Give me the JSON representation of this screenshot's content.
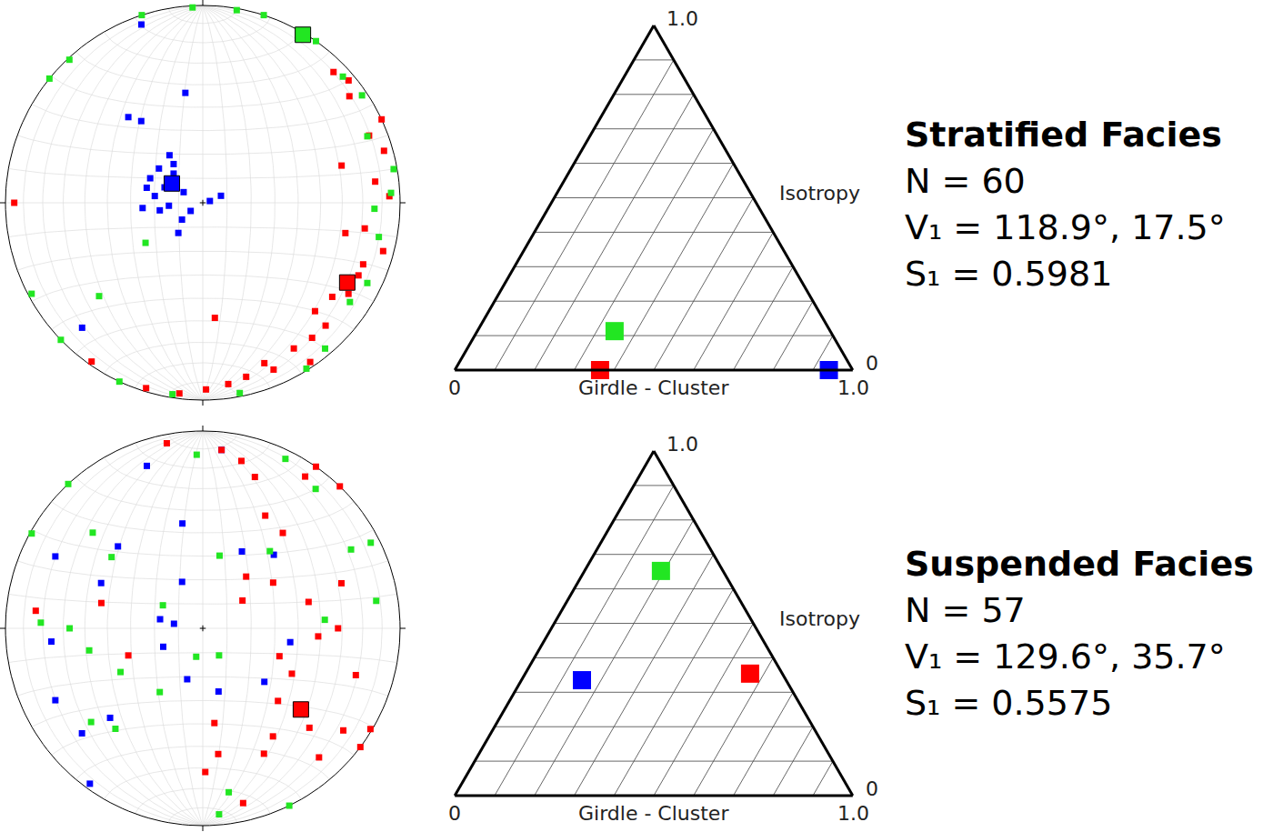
{
  "chart_data": [
    {
      "type": "stereonet",
      "title": "Stratified Facies",
      "marker": "square",
      "stats": [
        "N = 60",
        "V₁ = 118.9°, 17.5°",
        "S₁ = 0.5981"
      ],
      "series": [
        {
          "color": "#ff0000",
          "trend": [
            45,
            50,
            54,
            65,
            68,
            74,
            75,
            83,
            99,
            102,
            105,
            111,
            126,
            134,
            135,
            141,
            148,
            159,
            166,
            172,
            179,
            187,
            197,
            215,
            270,
            157,
            146,
            122,
            115,
            174,
            88
          ],
          "plunge": [
            7,
            4,
            9,
            0,
            10,
            5,
            28,
            13,
            18,
            27,
            6,
            14,
            20,
            22,
            13,
            13,
            14,
            14,
            10,
            8,
            6,
            3,
            2,
            2,
            5,
            9,
            3,
            14,
            14,
            41,
            6
          ],
          "mean": {
            "trend": 118.9,
            "plunge": 17.5
          }
        },
        {
          "color": "#22e622",
          "trend": [
            357,
            10,
            18,
            35,
            48,
            56,
            68,
            80,
            87,
            92,
            317,
            309,
            242,
            228,
            235,
            226,
            205,
            189,
            169,
            148,
            140,
            124,
            101,
            116,
            342
          ],
          "plunge": [
            1,
            1,
            0,
            0,
            5,
            3,
            11,
            2,
            5,
            14,
            1,
            0,
            2,
            30,
            61,
            0,
            0,
            2,
            2,
            1,
            4,
            11,
            10,
            8,
            0
          ],
          "mean": {
            "trend": 30.8,
            "plunge": 1
          }
        },
        {
          "color": "#0000ff",
          "trend": [
            341,
            351,
            319,
            323,
            325,
            308,
            295,
            315,
            299,
            278,
            265,
            265,
            236,
            231,
            219,
            69,
            76,
            285,
            224,
            292,
            260,
            323
          ],
          "plunge": [
            5,
            43,
            42,
            47,
            66,
            67,
            66,
            73,
            81,
            70,
            65,
            76,
            84,
            79,
            74,
            82,
            87,
            66,
            13,
            73,
            72,
            70
          ],
          "mean": {
            "trend": 302,
            "plunge": 75
          }
        }
      ]
    },
    {
      "type": "ternary",
      "marker": "square",
      "grid": true,
      "grid_values": [
        0.1,
        0.2,
        0.3,
        0.4,
        0.5,
        0.6,
        0.7,
        0.8,
        0.9
      ],
      "axes": {
        "isotropy": {
          "title": "Isotropy",
          "ticks": [
            0,
            {
              "value": 1,
              "label": "1.0"
            }
          ]
        },
        "girdle_cluster": {
          "title": "Girdle - Cluster",
          "ticks": [
            0,
            {
              "value": 1,
              "label": "1.0"
            }
          ]
        }
      },
      "points": {
        "colors": [
          "#22e622",
          "#ff0000",
          "#0000ff"
        ],
        "isotropy": [
          0.113,
          0,
          0
        ],
        "girdle_cluster": [
          0.345,
          0.365,
          0.94
        ]
      }
    },
    {
      "type": "stereonet",
      "title": "Suspended Facies",
      "marker": "square",
      "stats": [
        "N = 57",
        "V₁ = 129.6°, 35.7°",
        "S₁ = 0.5575"
      ],
      "series": [
        {
          "color": "#0000ff",
          "trend": [
            6,
            341,
            314,
            349,
            27,
            44,
            296,
            282,
            279,
            197,
            245,
            166,
            131,
            244,
            229,
            216,
            265,
            294,
            336,
            99,
            226
          ],
          "plunge": [
            10,
            14,
            40,
            45,
            54,
            47,
            18,
            72,
            78,
            68,
            72,
            63,
            56,
            18,
            20,
            3,
            24,
            43,
            69,
            53,
            35
          ]
        },
        {
          "color": "#22e622",
          "trend": [
            358,
            26,
            39,
            13,
            63,
            81,
            317,
            299,
            311,
            308,
            272,
            270,
            259,
            242,
            230,
            300,
            214,
            193,
            149,
            175,
            154,
            86,
            62,
            41,
            221,
            171
          ],
          "plunge": [
            13,
            5,
            10,
            59,
            5,
            12,
            0,
            1,
            27,
            41,
            19,
            33,
            41,
            51,
            27,
            71,
            58,
            78,
            77,
            6,
            0,
            38,
            16,
            47,
            33,
            17
          ]
        },
        {
          "color": "#ff0000",
          "trend": [
            349,
            6,
            13,
            19,
            35,
            34,
            44,
            29,
            40,
            40,
            55,
            57,
            76,
            72,
            90,
            94,
            110,
            117,
            107,
            134,
            133,
            126,
            147,
            173,
            179,
            154,
            121,
            138,
            167,
            250,
            276,
            284,
            173,
            127
          ],
          "plunge": [
            5,
            10,
            14,
            20,
            0,
            8,
            0,
            35,
            37,
            62,
            70,
            55,
            44,
            27,
            32,
            41,
            56,
            48,
            20,
            46,
            27,
            13,
            35,
            36,
            28,
            30,
            1,
            13,
            10,
            57,
            16,
            46,
            50,
            0
          ],
          "mean": {
            "trend": 129.6,
            "plunge": 35.7
          }
        }
      ]
    },
    {
      "type": "ternary",
      "marker": "square",
      "grid": true,
      "grid_values": [
        0.1,
        0.2,
        0.3,
        0.4,
        0.5,
        0.6,
        0.7,
        0.8,
        0.9
      ],
      "axes": {
        "isotropy": {
          "title": "Isotropy",
          "ticks": [
            0,
            {
              "value": 1,
              "label": "1.0"
            }
          ]
        },
        "girdle_cluster": {
          "title": "Girdle - Cluster",
          "ticks": [
            0,
            {
              "value": 1,
              "label": "1.0"
            }
          ]
        }
      },
      "points": {
        "colors": [
          "#22e622",
          "#0000ff",
          "#ff0000"
        ],
        "isotropy": [
          0.652,
          0.335,
          0.354
        ],
        "girdle_cluster": [
          0.192,
          0.152,
          0.565
        ]
      }
    }
  ]
}
